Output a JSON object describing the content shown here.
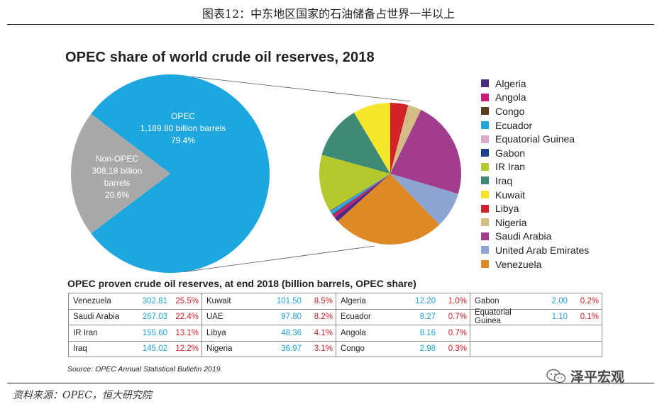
{
  "figure_title": "图表12：中东地区国家的石油储备占世界一半以上",
  "footer_source": "资料来源：OPEC，恒大研究院",
  "watermark": "泽平宏观",
  "chart_data": [
    {
      "type": "pie",
      "title": "OPEC share of world crude oil reserves, 2018",
      "slices": [
        {
          "name": "OPEC",
          "value": 1189.8,
          "share": 79.4,
          "color": "#1ea6df",
          "label_lines": [
            "OPEC",
            "1,189.80 billion barrels",
            "79.4%"
          ]
        },
        {
          "name": "Non-OPEC",
          "value": 308.18,
          "share": 20.6,
          "color": "#a9a9a9",
          "label_lines": [
            "Non-OPEC",
            "308.18 billion",
            "barrels",
            "20.6%"
          ]
        }
      ]
    },
    {
      "type": "pie",
      "legend_position": "right",
      "slices": [
        {
          "name": "Algeria",
          "value": 12.2,
          "color": "#4b2a82"
        },
        {
          "name": "Angola",
          "value": 8.16,
          "color": "#cc1a7d"
        },
        {
          "name": "Congo",
          "value": 2.98,
          "color": "#5a3e1b"
        },
        {
          "name": "Ecuador",
          "value": 8.27,
          "color": "#1ea6df"
        },
        {
          "name": "Equatorial Guinea",
          "value": 1.1,
          "color": "#d9a8cc"
        },
        {
          "name": "Gabon",
          "value": 2.0,
          "color": "#1f3f8f"
        },
        {
          "name": "IR Iran",
          "value": 155.6,
          "color": "#b5c82c"
        },
        {
          "name": "Iraq",
          "value": 145.02,
          "color": "#3d8a76"
        },
        {
          "name": "Kuwait",
          "value": 101.5,
          "color": "#f5e62c"
        },
        {
          "name": "Libya",
          "value": 48.36,
          "color": "#d2232a"
        },
        {
          "name": "Nigeria",
          "value": 36.97,
          "color": "#d4bd84"
        },
        {
          "name": "Saudi Arabia",
          "value": 267.03,
          "color": "#a23d8d"
        },
        {
          "name": "United Arab Emirates",
          "value": 97.8,
          "color": "#8ea4d2"
        },
        {
          "name": "Venezuela",
          "value": 302.81,
          "color": "#dd8a26"
        }
      ]
    },
    {
      "type": "table",
      "title": "OPEC proven crude oil reserves, at end 2018 (billion barrels, OPEC share)",
      "columns": [
        [
          {
            "name": "Venezuela",
            "value": "302.81",
            "share": "25.5%"
          },
          {
            "name": "Saudi Arabia",
            "value": "267.03",
            "share": "22.4%"
          },
          {
            "name": "IR Iran",
            "value": "155.60",
            "share": "13.1%"
          },
          {
            "name": "Iraq",
            "value": "145.02",
            "share": "12.2%"
          }
        ],
        [
          {
            "name": "Kuwait",
            "value": "101.50",
            "share": "8.5%"
          },
          {
            "name": "UAE",
            "value": "97.80",
            "share": "8.2%"
          },
          {
            "name": "Libya",
            "value": "48.36",
            "share": "4.1%"
          },
          {
            "name": "Nigeria",
            "value": "36.97",
            "share": "3.1%"
          }
        ],
        [
          {
            "name": "Algeria",
            "value": "12.20",
            "share": "1.0%"
          },
          {
            "name": "Ecuador",
            "value": "8.27",
            "share": "0.7%"
          },
          {
            "name": "Angola",
            "value": "8.16",
            "share": "0.7%"
          },
          {
            "name": "Congo",
            "value": "2.98",
            "share": "0.3%"
          }
        ],
        [
          {
            "name": "Gabon",
            "value": "2.00",
            "share": "0.2%"
          },
          {
            "name": "Equatorial Guinea",
            "value": "1.10",
            "share": "0.1%"
          },
          {
            "name": "",
            "value": "",
            "share": ""
          },
          {
            "name": "",
            "value": "",
            "share": ""
          }
        ]
      ],
      "source": "Source: OPEC Annual Statistical Bulletin 2019."
    }
  ]
}
